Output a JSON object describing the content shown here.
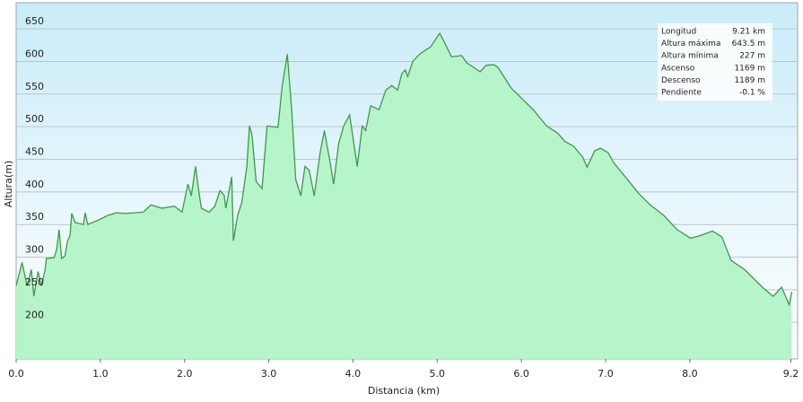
{
  "chart_data": {
    "type": "area",
    "x_label": "Distancia  (km)",
    "y_label": "Altura(m)",
    "x": [
      0.0,
      0.07,
      0.13,
      0.18,
      0.21,
      0.26,
      0.3,
      0.34,
      0.36,
      0.45,
      0.48,
      0.51,
      0.54,
      0.58,
      0.61,
      0.64,
      0.66,
      0.7,
      0.8,
      0.82,
      0.85,
      0.98,
      1.09,
      1.19,
      1.3,
      1.41,
      1.51,
      1.6,
      1.73,
      1.88,
      1.97,
      2.04,
      2.08,
      2.13,
      2.17,
      2.2,
      2.29,
      2.36,
      2.42,
      2.47,
      2.49,
      2.56,
      2.58,
      2.63,
      2.68,
      2.74,
      2.77,
      2.8,
      2.85,
      2.92,
      2.98,
      3.11,
      3.16,
      3.22,
      3.27,
      3.32,
      3.38,
      3.43,
      3.48,
      3.54,
      3.61,
      3.66,
      3.73,
      3.77,
      3.83,
      3.89,
      3.96,
      4.05,
      4.11,
      4.15,
      4.21,
      4.31,
      4.39,
      4.46,
      4.53,
      4.58,
      4.62,
      4.65,
      4.71,
      4.79,
      4.87,
      4.92,
      5.03,
      5.09,
      5.17,
      5.29,
      5.35,
      5.51,
      5.58,
      5.67,
      5.72,
      5.79,
      5.88,
      5.99,
      6.14,
      6.3,
      6.43,
      6.52,
      6.62,
      6.73,
      6.78,
      6.87,
      6.94,
      7.03,
      7.1,
      7.26,
      7.39,
      7.53,
      7.69,
      7.85,
      8.01,
      8.12,
      8.27,
      8.38,
      8.49,
      8.65,
      8.86,
      8.99,
      9.09,
      9.18,
      9.21
    ],
    "values": [
      256,
      292,
      256,
      281,
      240,
      278,
      256,
      278,
      298,
      299,
      311,
      342,
      298,
      302,
      325,
      333,
      367,
      353,
      350,
      368,
      350,
      357,
      364,
      368,
      367,
      368,
      369,
      380,
      375,
      378,
      369,
      412,
      394,
      439,
      400,
      375,
      369,
      378,
      402,
      395,
      375,
      423,
      325,
      364,
      384,
      439,
      501,
      488,
      416,
      405,
      501,
      499,
      563,
      611,
      529,
      419,
      394,
      439,
      433,
      394,
      460,
      494,
      444,
      412,
      474,
      501,
      518,
      439,
      501,
      494,
      532,
      526,
      556,
      563,
      556,
      581,
      587,
      577,
      600,
      611,
      618,
      622,
      643,
      628,
      607,
      609,
      598,
      584,
      594,
      595,
      591,
      577,
      559,
      545,
      526,
      501,
      490,
      477,
      470,
      453,
      438,
      463,
      467,
      460,
      444,
      419,
      398,
      380,
      364,
      342,
      329,
      333,
      340,
      331,
      295,
      281,
      254,
      240,
      254,
      227,
      247
    ],
    "line_color": "#3d9a48",
    "fill_color": "#b6f5c9",
    "xlim": [
      0,
      9.28
    ],
    "ylim": [
      144,
      690
    ],
    "xticks": [
      {
        "value": 0,
        "label": "0.0"
      },
      {
        "value": 1,
        "label": "1.0"
      },
      {
        "value": 2,
        "label": "2.0"
      },
      {
        "value": 3,
        "label": "3.0"
      },
      {
        "value": 4,
        "label": "4.0"
      },
      {
        "value": 5,
        "label": "5.0"
      },
      {
        "value": 6,
        "label": "6.0"
      },
      {
        "value": 7,
        "label": "7.0"
      },
      {
        "value": 8,
        "label": "8.0"
      },
      9.2
    ],
    "yticks": [
      200,
      250,
      300,
      350,
      400,
      450,
      500,
      550,
      600,
      650
    ],
    "grid": true,
    "stats": [
      {
        "label": "Longitud",
        "value": "9.21 km"
      },
      {
        "label": "Altura máxima",
        "value": "643.5 m"
      },
      {
        "label": "Altura mínima",
        "value": "227 m"
      },
      {
        "label": "Ascenso",
        "value": "1169 m"
      },
      {
        "label": "Descenso",
        "value": "1189 m"
      },
      {
        "label": "Pendiente",
        "value": "-0.1 %"
      }
    ]
  }
}
